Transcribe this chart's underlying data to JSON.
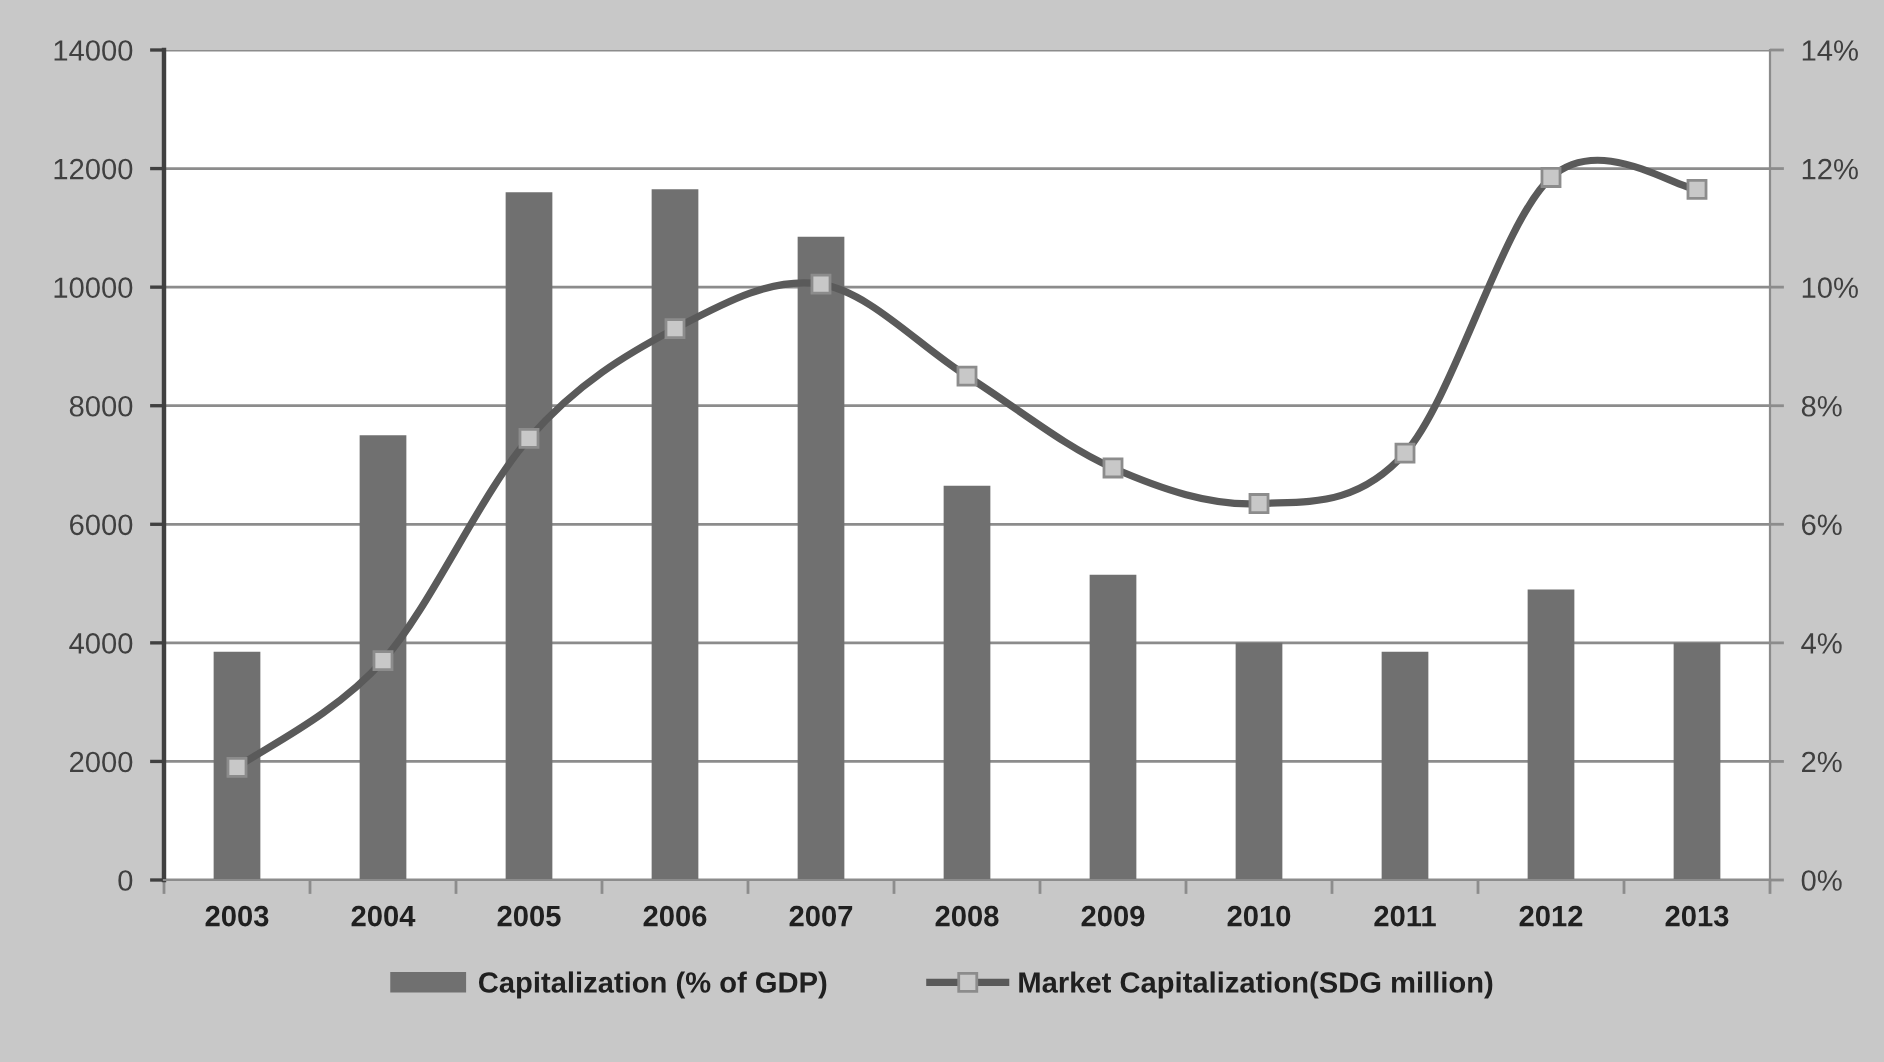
{
  "chart_data": {
    "type": "bar",
    "categories": [
      "2003",
      "2004",
      "2005",
      "2006",
      "2007",
      "2008",
      "2009",
      "2010",
      "2011",
      "2012",
      "2013"
    ],
    "series": [
      {
        "name": "Capitalization (% of GDP)",
        "axis": "y2",
        "color": "#707070",
        "values": [
          3.85,
          7.5,
          11.6,
          11.65,
          10.85,
          6.65,
          5.15,
          4.0,
          3.85,
          4.9,
          4.0
        ]
      },
      {
        "name": "Market Capitalization(SDG million)",
        "type": "line",
        "axis": "y",
        "color": "#5a5a5a",
        "values": [
          1900,
          3700,
          7450,
          9300,
          10050,
          8500,
          6950,
          6350,
          7200,
          11850,
          11650
        ]
      }
    ],
    "ylim": [
      0,
      14000
    ],
    "yticks": [
      0,
      2000,
      4000,
      6000,
      8000,
      10000,
      12000,
      14000
    ],
    "y2lim": [
      0,
      14
    ],
    "y2ticks": [
      {
        "value": 0,
        "label": "0%"
      },
      {
        "value": 2,
        "label": "2%"
      },
      {
        "value": 4,
        "label": "4%"
      },
      {
        "value": 6,
        "label": "6%"
      },
      {
        "value": 8,
        "label": "8%"
      },
      {
        "value": 10,
        "label": "10%"
      },
      {
        "value": 12,
        "label": "12%"
      },
      {
        "value": 14,
        "label": "14%"
      }
    ],
    "grid": "y",
    "legend": "bottom",
    "marker": "square"
  }
}
